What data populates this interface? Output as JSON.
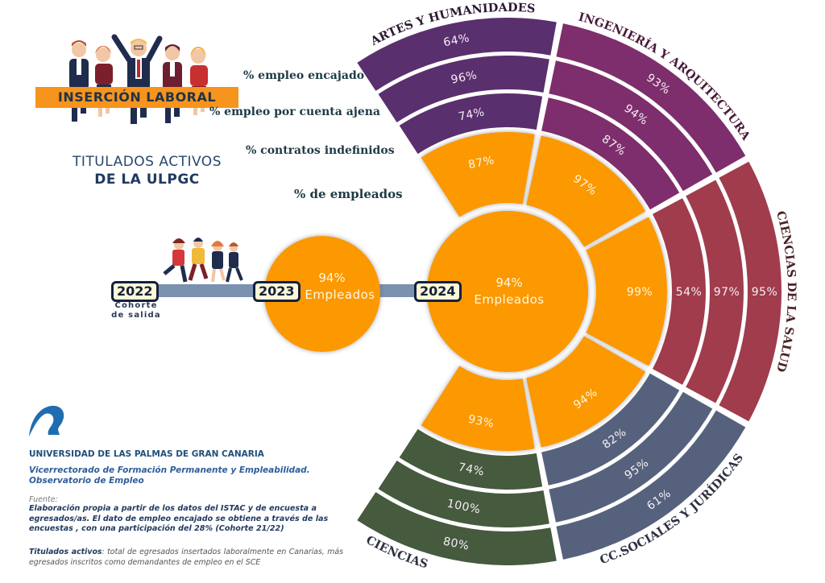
{
  "header": {
    "banner": "INSERCIÓN LABORAL",
    "subtitle_line1": "TITULADOS ACTIVOS",
    "subtitle_line2": "DE LA ULPGC"
  },
  "metric_labels": {
    "encajado": "% empleo encajado",
    "cuenta_ajena": "% empleo por cuenta ajena",
    "indefinidos": "% contratos indefinidos",
    "empleados": "% de empleados"
  },
  "timeline": {
    "y2022": "2022",
    "cohort_label_1": "Cohorte",
    "cohort_label_2": "de salida",
    "y2023": "2023",
    "y2023_value": "94%",
    "y2023_label": "Empleados",
    "y2024": "2024",
    "y2024_value": "94%",
    "y2024_label": "Empleados"
  },
  "colors": {
    "orange": "#fc9803",
    "artes": "#5a2f6e",
    "ingenieria": "#7e2e6c",
    "salud": "#a03c4c",
    "sociales": "#56627d",
    "ciencias": "#465a3e",
    "timeline_bar": "#7a91b0",
    "banner": "#f7941d",
    "logo": "#1f6db1"
  },
  "footer": {
    "university": "UNIVERSIDAD DE LAS PALMAS DE GRAN CANARIA",
    "vice_1": "Vicerrectorado de Formación Permanente y Empleabilidad.",
    "vice_2": "Observatorio de Empleo",
    "fuente_heading": "Fuente:",
    "fuente_text": "Elaboración propia a partir de los datos del ISTAC y de encuesta a egresados/as. El dato de empleo encajado se obtiene a través de las encuestas , con una participación del 28% (Cohorte 21/22)",
    "activos_term": "Titulados activos",
    "activos_text": ": total de egresados insertados laboralmente en Canarias, más egresados inscritos como demandantes de empleo en el SCE"
  },
  "chart_data": {
    "type": "radial-bar (sunburst)",
    "title": "Inserción laboral — Titulados activos de la ULPGC",
    "center": {
      "label": "Empleados",
      "value": 94,
      "year": "2024"
    },
    "previous": {
      "label": "Empleados",
      "value": 94,
      "year": "2023"
    },
    "cohort": "2022",
    "rings_inner_to_outer": [
      "% de empleados",
      "% contratos indefinidos",
      "% empleo por cuenta ajena",
      "% empleo encajado"
    ],
    "categories": [
      "Artes y Humanidades",
      "Ingeniería y Arquitectura",
      "Ciencias de la Salud",
      "CC. Sociales y Jurídicas",
      "Ciencias"
    ],
    "series": [
      {
        "name": "% de empleados",
        "values": [
          87,
          97,
          99,
          94,
          93
        ]
      },
      {
        "name": "% contratos indefinidos",
        "values": [
          74,
          87,
          54,
          82,
          74
        ]
      },
      {
        "name": "% empleo por cuenta ajena",
        "values": [
          96,
          94,
          97,
          95,
          100
        ]
      },
      {
        "name": "% empleo encajado",
        "values": [
          64,
          93,
          95,
          61,
          80
        ]
      }
    ],
    "unit": "%"
  },
  "sectors": [
    {
      "name": "ARTES Y HUMANIDADES",
      "key": "artes",
      "a0": 124,
      "a1": 79,
      "values": [
        "87%",
        "74%",
        "96%",
        "64%"
      ]
    },
    {
      "name": "INGENIERÍA Y ARQUITECTURA",
      "key": "ingenieria",
      "a0": 79,
      "a1": 29,
      "values": [
        "97%",
        "87%",
        "94%",
        "93%"
      ]
    },
    {
      "name": "CIENCIAS DE LA SALUD",
      "key": "salud",
      "a0": 29,
      "a1": -29,
      "values": [
        "99%",
        "54%",
        "97%",
        "95%"
      ]
    },
    {
      "name": "CC.SOCIALES Y JURÍDICAS",
      "key": "sociales",
      "a0": -29,
      "a1": -79,
      "values": [
        "94%",
        "82%",
        "95%",
        "61%"
      ]
    },
    {
      "name": "CIENCIAS",
      "key": "ciencias",
      "a0": -79,
      "a1": -124,
      "values": [
        "93%",
        "74%",
        "100%",
        "80%"
      ]
    }
  ]
}
